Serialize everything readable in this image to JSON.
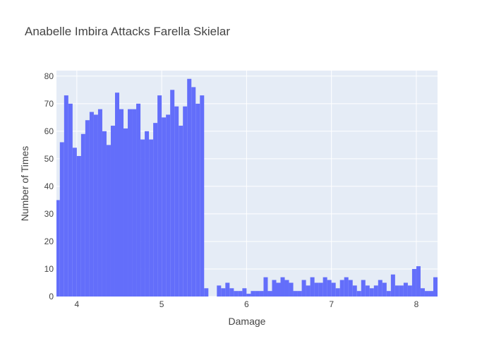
{
  "chart_data": {
    "type": "bar",
    "title": "Anabelle Imbira Attacks Farella Skielar",
    "xlabel": "Damage",
    "ylabel": "Number of Times",
    "xlim": [
      3.76,
      8.25
    ],
    "ylim": [
      0,
      82
    ],
    "bin_width": 0.05,
    "x_ticks": [
      4,
      5,
      6,
      7,
      8
    ],
    "y_ticks": [
      0,
      10,
      20,
      30,
      40,
      50,
      60,
      70,
      80
    ],
    "grid": true,
    "bar_color": "#636efa",
    "plot_bg": "#e5ecf6",
    "bins": [
      {
        "x": 3.775,
        "y": 35
      },
      {
        "x": 3.825,
        "y": 56
      },
      {
        "x": 3.875,
        "y": 73
      },
      {
        "x": 3.925,
        "y": 70
      },
      {
        "x": 3.975,
        "y": 54
      },
      {
        "x": 4.025,
        "y": 51
      },
      {
        "x": 4.075,
        "y": 59
      },
      {
        "x": 4.125,
        "y": 64
      },
      {
        "x": 4.175,
        "y": 67
      },
      {
        "x": 4.225,
        "y": 66
      },
      {
        "x": 4.275,
        "y": 68
      },
      {
        "x": 4.325,
        "y": 60
      },
      {
        "x": 4.375,
        "y": 55
      },
      {
        "x": 4.425,
        "y": 62
      },
      {
        "x": 4.475,
        "y": 74
      },
      {
        "x": 4.525,
        "y": 68
      },
      {
        "x": 4.575,
        "y": 61
      },
      {
        "x": 4.625,
        "y": 68
      },
      {
        "x": 4.675,
        "y": 68
      },
      {
        "x": 4.725,
        "y": 70
      },
      {
        "x": 4.775,
        "y": 57
      },
      {
        "x": 4.825,
        "y": 60
      },
      {
        "x": 4.875,
        "y": 57
      },
      {
        "x": 4.925,
        "y": 63
      },
      {
        "x": 4.975,
        "y": 73
      },
      {
        "x": 5.025,
        "y": 65
      },
      {
        "x": 5.075,
        "y": 66
      },
      {
        "x": 5.125,
        "y": 75
      },
      {
        "x": 5.175,
        "y": 69
      },
      {
        "x": 5.225,
        "y": 62
      },
      {
        "x": 5.275,
        "y": 69
      },
      {
        "x": 5.325,
        "y": 79
      },
      {
        "x": 5.375,
        "y": 76
      },
      {
        "x": 5.425,
        "y": 70
      },
      {
        "x": 5.475,
        "y": 73
      },
      {
        "x": 5.525,
        "y": 3
      },
      {
        "x": 5.575,
        "y": 0
      },
      {
        "x": 5.625,
        "y": 0
      },
      {
        "x": 5.675,
        "y": 4
      },
      {
        "x": 5.725,
        "y": 3
      },
      {
        "x": 5.775,
        "y": 5
      },
      {
        "x": 5.825,
        "y": 3
      },
      {
        "x": 5.875,
        "y": 2
      },
      {
        "x": 5.925,
        "y": 2
      },
      {
        "x": 5.975,
        "y": 3
      },
      {
        "x": 6.025,
        "y": 1
      },
      {
        "x": 6.075,
        "y": 2
      },
      {
        "x": 6.125,
        "y": 2
      },
      {
        "x": 6.175,
        "y": 2
      },
      {
        "x": 6.225,
        "y": 7
      },
      {
        "x": 6.275,
        "y": 2
      },
      {
        "x": 6.325,
        "y": 6
      },
      {
        "x": 6.375,
        "y": 5
      },
      {
        "x": 6.425,
        "y": 7
      },
      {
        "x": 6.475,
        "y": 6
      },
      {
        "x": 6.525,
        "y": 5
      },
      {
        "x": 6.575,
        "y": 2
      },
      {
        "x": 6.625,
        "y": 2
      },
      {
        "x": 6.675,
        "y": 6
      },
      {
        "x": 6.725,
        "y": 4
      },
      {
        "x": 6.775,
        "y": 7
      },
      {
        "x": 6.825,
        "y": 5
      },
      {
        "x": 6.875,
        "y": 5
      },
      {
        "x": 6.925,
        "y": 7
      },
      {
        "x": 6.975,
        "y": 6
      },
      {
        "x": 7.025,
        "y": 5
      },
      {
        "x": 7.075,
        "y": 3
      },
      {
        "x": 7.125,
        "y": 6
      },
      {
        "x": 7.175,
        "y": 7
      },
      {
        "x": 7.225,
        "y": 6
      },
      {
        "x": 7.275,
        "y": 4
      },
      {
        "x": 7.325,
        "y": 2
      },
      {
        "x": 7.375,
        "y": 6
      },
      {
        "x": 7.425,
        "y": 4
      },
      {
        "x": 7.475,
        "y": 3
      },
      {
        "x": 7.525,
        "y": 4
      },
      {
        "x": 7.575,
        "y": 6
      },
      {
        "x": 7.625,
        "y": 5
      },
      {
        "x": 7.675,
        "y": 2
      },
      {
        "x": 7.725,
        "y": 8
      },
      {
        "x": 7.775,
        "y": 4
      },
      {
        "x": 7.825,
        "y": 4
      },
      {
        "x": 7.875,
        "y": 5
      },
      {
        "x": 7.925,
        "y": 4
      },
      {
        "x": 7.975,
        "y": 10
      },
      {
        "x": 8.025,
        "y": 11
      },
      {
        "x": 8.075,
        "y": 3
      },
      {
        "x": 8.125,
        "y": 2
      },
      {
        "x": 8.175,
        "y": 2
      },
      {
        "x": 8.225,
        "y": 7
      }
    ]
  }
}
